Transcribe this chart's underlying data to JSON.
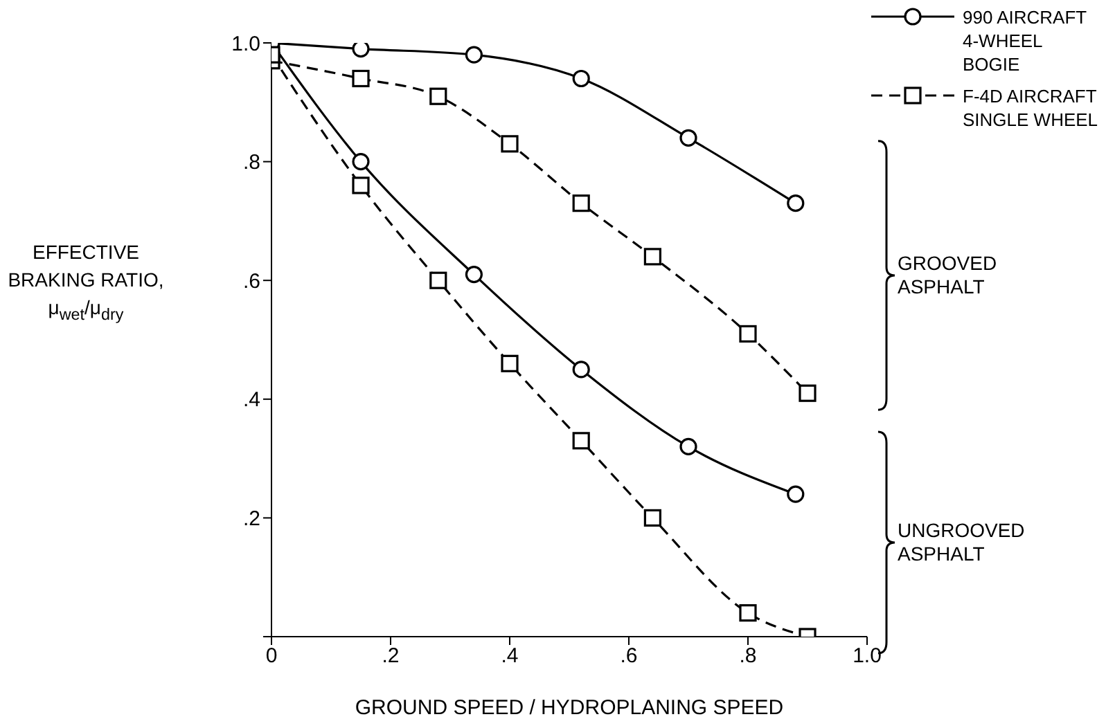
{
  "chart_data": {
    "type": "line",
    "xlabel": "GROUND SPEED / HYDROPLANING SPEED",
    "ylabel": "EFFECTIVE BRAKING RATIO, μ$_{wet}$/μ$_{dry}$",
    "xlim": [
      0,
      1
    ],
    "ylim": [
      0,
      1
    ],
    "xticks": [
      0,
      {
        "value": 0.2,
        "label": ".2"
      },
      {
        "value": 0.4,
        "label": ".4"
      },
      {
        "value": 0.6,
        "label": ".6"
      },
      {
        "value": 0.8,
        "label": ".8"
      },
      {
        "value": 1,
        "label": "1.0"
      }
    ],
    "yticks": [
      {
        "value": 0,
        "label": null
      },
      {
        "value": 0.2,
        "label": ".2"
      },
      {
        "value": 0.4,
        "label": ".4"
      },
      {
        "value": 0.6,
        "label": ".6"
      },
      {
        "value": 0.8,
        "label": ".8"
      },
      {
        "value": 1,
        "label": "1.0"
      }
    ],
    "grid": false,
    "legend": "top right",
    "series": [
      {
        "name": "990 AIRCRAFT 4-WHEEL BOGIE",
        "color": "#000000",
        "marker": "circle",
        "line_style": "solid",
        "x": [
          0,
          0.15,
          0.34,
          0.52,
          0.7,
          0.88
        ],
        "values": [
          1.0,
          0.99,
          0.98,
          0.94,
          0.84,
          0.73
        ]
      },
      {
        "name": "F-4D AIRCRAFT SINGLE WHEEL",
        "color": "#000000",
        "marker": "square",
        "line_style": "dashed",
        "x": [
          0,
          0.15,
          0.28,
          0.4,
          0.52,
          0.64,
          0.8,
          0.9
        ],
        "values": [
          0.97,
          0.94,
          0.91,
          0.83,
          0.73,
          0.64,
          0.51,
          0.41
        ]
      },
      {
        "color": "#000000",
        "marker": "circle",
        "line_style": "solid",
        "x": [
          0,
          0.15,
          0.34,
          0.52,
          0.7,
          0.88
        ],
        "values": [
          1.0,
          0.8,
          0.61,
          0.45,
          0.32,
          0.24
        ]
      },
      {
        "color": "#000000",
        "marker": "square",
        "line_style": "dashed",
        "x": [
          0,
          0.15,
          0.28,
          0.4,
          0.52,
          0.64,
          0.8,
          0.9
        ],
        "values": [
          0.98,
          0.76,
          0.6,
          0.46,
          0.33,
          0.2,
          0.04,
          0
        ]
      }
    ],
    "annotations": [
      "GROOVED ASPHALT",
      "UNGROOVED ASPHALT"
    ]
  }
}
